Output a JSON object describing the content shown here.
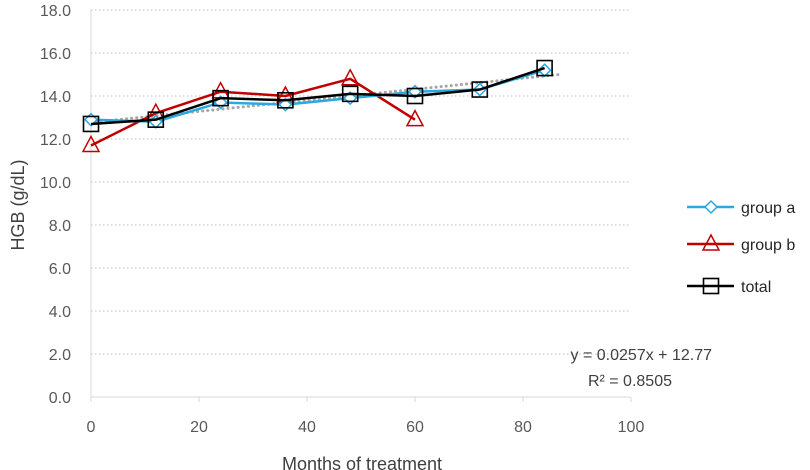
{
  "chart_data": {
    "type": "line",
    "title": "",
    "xlabel": "Months of treatment",
    "ylabel": "HGB (g/dL)",
    "xlim": [
      0,
      100
    ],
    "ylim": [
      0,
      18
    ],
    "x_ticks": [
      "0",
      "20",
      "40",
      "60",
      "80",
      "100"
    ],
    "y_ticks": [
      "0.0",
      "2.0",
      "4.0",
      "6.0",
      "8.0",
      "10.0",
      "12.0",
      "14.0",
      "16.0",
      "18.0"
    ],
    "grid": "horizontal dotted",
    "legend_position": "right",
    "series": [
      {
        "name": "group a",
        "color": "#2aa8e0",
        "marker": "diamond",
        "x": [
          0,
          12,
          24,
          36,
          48,
          60,
          72,
          84
        ],
        "y": [
          12.9,
          12.8,
          13.7,
          13.6,
          13.9,
          14.2,
          14.3,
          15.2
        ]
      },
      {
        "name": "group b",
        "color": "#c00000",
        "marker": "triangle",
        "x": [
          0,
          12,
          24,
          36,
          48,
          60
        ],
        "y": [
          11.7,
          13.2,
          14.2,
          14.0,
          14.8,
          12.9
        ]
      },
      {
        "name": "total",
        "color": "#000000",
        "marker": "square",
        "x": [
          0,
          12,
          24,
          36,
          48,
          60,
          72,
          84
        ],
        "y": [
          12.7,
          12.9,
          13.9,
          13.8,
          14.1,
          14.0,
          14.3,
          15.3
        ]
      }
    ],
    "trendline": {
      "name": "linear trend (total)",
      "color": "#a6a6a6",
      "slope": 0.0257,
      "intercept": 12.77,
      "x_range": [
        0,
        87
      ]
    },
    "annotations": [
      "y = 0.0257x + 12.77",
      "R² = 0.8505"
    ]
  }
}
